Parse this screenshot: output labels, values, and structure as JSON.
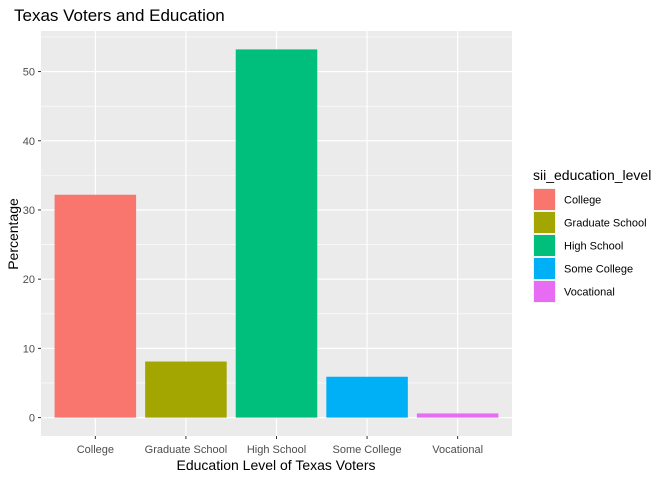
{
  "chart_data": {
    "type": "bar",
    "title": "Texas Voters and Education",
    "xlabel": "Education Level of Texas Voters",
    "ylabel": "Percentage",
    "categories": [
      "College",
      "Graduate School",
      "High School",
      "Some College",
      "Vocational"
    ],
    "values": [
      32.2,
      8.1,
      53.2,
      5.9,
      0.6
    ],
    "colors": [
      "#F8766D",
      "#A3A500",
      "#00BF7D",
      "#00B0F6",
      "#E76BF3"
    ],
    "ylim": [
      -2.66,
      55.86
    ],
    "yticks": [
      0,
      10,
      20,
      30,
      40,
      50
    ],
    "grid": true,
    "panel_background": "#EBEBEB",
    "legend": {
      "title": "sii_education_level",
      "position": "right",
      "entries": [
        "College",
        "Graduate School",
        "High School",
        "Some College",
        "Vocational"
      ]
    }
  }
}
